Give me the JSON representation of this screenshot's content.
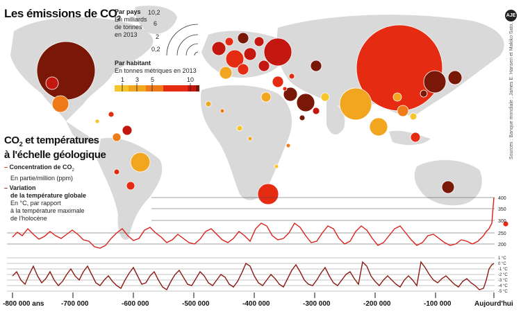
{
  "title": "Les émissions de CO",
  "title_sub": "2",
  "by_country": {
    "heading": "Par pays",
    "line1": "En milliards",
    "line2": "de tonnes",
    "line3": "en 2013",
    "scale": [
      "10,2",
      "6",
      "2",
      "0,2"
    ]
  },
  "per_capita": {
    "heading": "Par habitant",
    "unit": "En tonnes métriques en 2013",
    "ticks": [
      "1",
      "3",
      "5",
      "10"
    ],
    "colors": [
      "#f6c42b",
      "#f2a51e",
      "#ee7b17",
      "#e52c12",
      "#c4170f",
      "#7a1808"
    ]
  },
  "geo_title_line1": "CO",
  "geo_title_sub": "2",
  "geo_title_line1_rest": " et températures",
  "geo_title_line2": "à l'échelle géologique",
  "legend_co2": {
    "heading": "Concentration de CO",
    "heading_sub": "2",
    "unit": "En partie/million (ppm)"
  },
  "legend_temp": {
    "heading1": "Variation",
    "heading2": "de la température globale",
    "line1": "En °C, par rapport",
    "line2": "à la température maximale",
    "line3": "de l'holocène"
  },
  "co2_ticks": [
    "400",
    "350",
    "300",
    "250",
    "200"
  ],
  "temp_ticks": [
    "1 °C",
    "0 °C",
    "-1 °C",
    "-2 °C",
    "-3 °C",
    "-4 °C",
    "-5 °C"
  ],
  "x_ticks": [
    "-800 000 ans",
    "-700 000",
    "-600 000",
    "-500 000",
    "-400 000",
    "-300 000",
    "-200 000",
    "-100 000",
    "Aujourd'hui"
  ],
  "sources": "Sources : Banque mondiale ; James E. Hansen et Makiko Sato, Nasa",
  "logo": "AJE",
  "colors": {
    "co2_line": "#d8201b",
    "temp_line": "#8a1a12",
    "map": "#d6d6d6"
  }
}
